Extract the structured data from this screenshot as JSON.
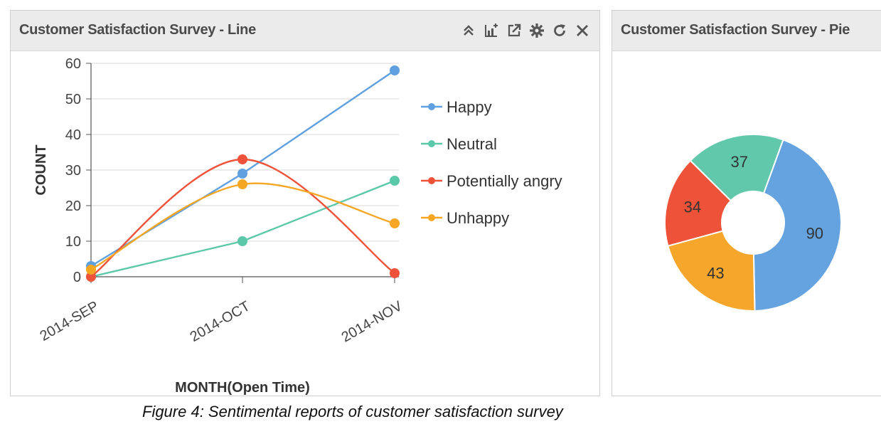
{
  "line_panel": {
    "title": "Customer Satisfaction Survey - Line",
    "toolbar": [
      {
        "name": "collapse-icon"
      },
      {
        "name": "chart-export-icon"
      },
      {
        "name": "popout-icon"
      },
      {
        "name": "gear-icon"
      },
      {
        "name": "refresh-icon"
      },
      {
        "name": "close-icon"
      }
    ]
  },
  "pie_panel": {
    "title": "Customer Satisfaction Survey - Pie"
  },
  "caption": "Figure 4: Sentimental reports of customer satisfaction survey",
  "chart_data": [
    {
      "type": "line",
      "title": "",
      "xlabel": "MONTH(Open Time)",
      "ylabel": "COUNT",
      "categories": [
        "2014-SEP",
        "2014-OCT",
        "2014-NOV"
      ],
      "ylim": [
        0,
        60
      ],
      "yticks": [
        0,
        10,
        20,
        30,
        40,
        50,
        60
      ],
      "grid": true,
      "legend_position": "right",
      "series": [
        {
          "name": "Happy",
          "color": "#5fa0e0",
          "values": [
            3,
            29,
            58
          ]
        },
        {
          "name": "Neutral",
          "color": "#5cc8aa",
          "values": [
            0,
            10,
            27
          ]
        },
        {
          "name": "Potentially angry",
          "color": "#ee5238",
          "values": [
            0,
            33,
            1
          ]
        },
        {
          "name": "Unhappy",
          "color": "#f5a623",
          "values": [
            2,
            26,
            15
          ]
        }
      ]
    },
    {
      "type": "pie",
      "title": "",
      "donut": true,
      "slices": [
        {
          "label": "Happy",
          "value": 90,
          "color": "#64a2e0"
        },
        {
          "label": "Unhappy",
          "value": 43,
          "color": "#f5a62b"
        },
        {
          "label": "Potentially angry",
          "value": 34,
          "color": "#ee5238"
        },
        {
          "label": "Neutral",
          "value": 37,
          "color": "#62c8ac"
        }
      ]
    }
  ]
}
